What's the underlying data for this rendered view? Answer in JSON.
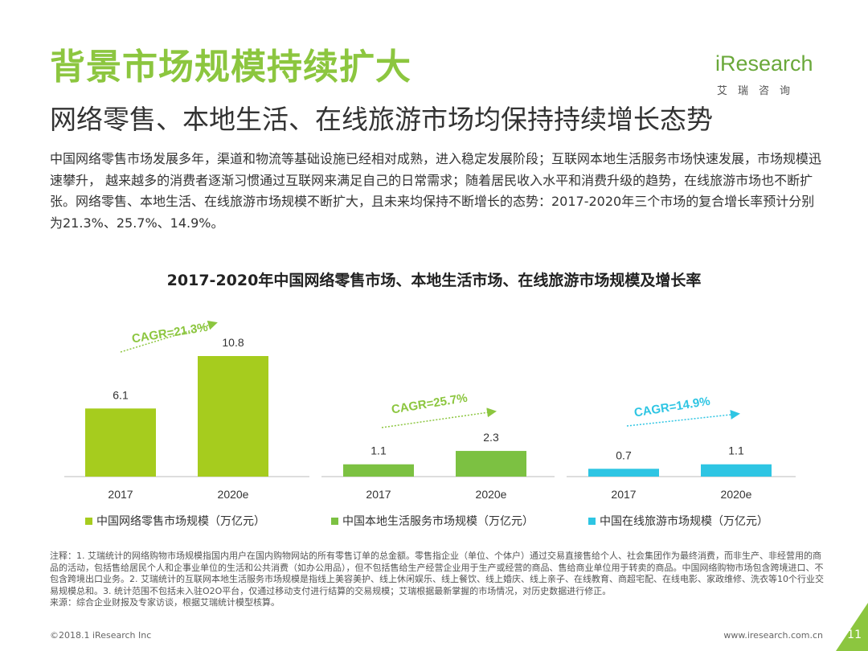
{
  "header": {
    "title": "背景市场规模持续扩大",
    "subtitle": "网络零售、本地生活、在线旅游市场均保持持续增长态势",
    "logo_text": "iResearch",
    "logo_sub": "艾瑞咨询"
  },
  "description": "中国网络零售市场发展多年，渠道和物流等基础设施已经相对成熟，进入稳定发展阶段；互联网本地生活服务市场快速发展，市场规模迅速攀升， 越来越多的消费者逐渐习惯通过互联网来满足自己的日常需求；随着居民收入水平和消费升级的趋势，在线旅游市场也不断扩张。网络零售、本地生活、在线旅游市场规模不断扩大，且未来均保持不断增长的态势：2017-2020年三个市场的复合增长率预计分别为21.3%、25.7%、14.9%。",
  "chart_data": {
    "type": "bar",
    "title": "2017-2020年中国网络零售市场、本地生活市场、在线旅游市场规模及增长率",
    "ylim": [
      0,
      12
    ],
    "grid": false,
    "legend_position": "bottom",
    "panels": [
      {
        "categories": [
          "2017",
          "2020e"
        ],
        "values": [
          6.1,
          10.8
        ],
        "value_labels": [
          "6.1",
          "10.8"
        ],
        "cagr": "CAGR=21.3%",
        "legend": "中国网络零售市场规模（万亿元）",
        "color": "#a6cc1e"
      },
      {
        "categories": [
          "2017",
          "2020e"
        ],
        "values": [
          1.1,
          2.3
        ],
        "value_labels": [
          "1.1",
          "2.3"
        ],
        "cagr": "CAGR=25.7%",
        "legend": "中国本地生活服务市场规模（万亿元）",
        "color": "#7cc142"
      },
      {
        "categories": [
          "2017",
          "2020e"
        ],
        "values": [
          0.7,
          1.1
        ],
        "value_labels": [
          "0.7",
          "1.1"
        ],
        "cagr": "CAGR=14.9%",
        "legend": "中国在线旅游市场规模（万亿元）",
        "color": "#2ec5e3"
      }
    ],
    "cagr_color_green": "#8cc63f",
    "cagr_color_blue": "#2ec5e3"
  },
  "notes": [
    "注释：1. 艾瑞统计的网络购物市场规模指国内用户在国内购物网站的所有零售订单的总金额。零售指企业（单位、个体户）通过交易直接售给个人、社会集团作为最终消费，而非生产、非经营用的商品的活动，包括售给居民个人和企事业单位的生活和公共消费（如办公用品），但不包括售给生产经营企业用于生产或经营的商品、售给商业单位用于转卖的商品。中国网络购物市场包含跨境进口、不包含跨境出口业务。2. 艾瑞统计的互联网本地生活服务市场规模是指线上美容美护、线上休闲娱乐、线上餐饮、线上婚庆、线上亲子、在线教育、商超宅配、在线电影、家政维修、洗衣等10个行业交易规模总和。3. 统计范围不包括未入驻O2O平台，仅通过移动支付进行结算的交易规模；艾瑞根据最新掌握的市场情况，对历史数据进行修正。",
    "来源：综合企业财报及专家访谈，根据艾瑞统计模型核算。"
  ],
  "footer": {
    "copyright": "©2018.1 iResearch Inc",
    "url": "www.iresearch.com.cn",
    "page": "11"
  },
  "colors": {
    "brand_green": "#8cc63f",
    "accent_cyan": "#2ec5e3"
  }
}
